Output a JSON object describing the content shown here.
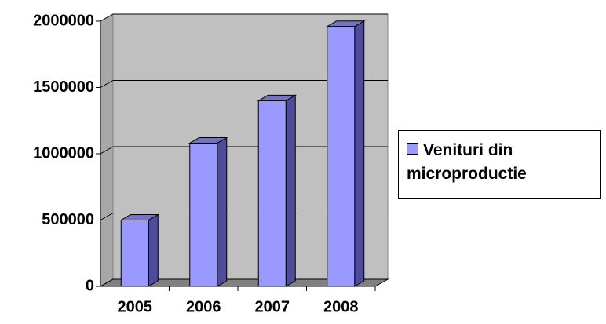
{
  "chart_data": {
    "type": "bar3d",
    "categories": [
      "2005",
      "2006",
      "2007",
      "2008"
    ],
    "series": [
      {
        "name": "Venituri din microproductie",
        "color": "#9999ff",
        "values": [
          500000,
          1080000,
          1400000,
          1960000
        ]
      }
    ],
    "ylim": [
      0,
      2000000
    ],
    "yticks": [
      0,
      500000,
      1000000,
      1500000,
      2000000
    ],
    "grid": true,
    "legend": "right"
  }
}
